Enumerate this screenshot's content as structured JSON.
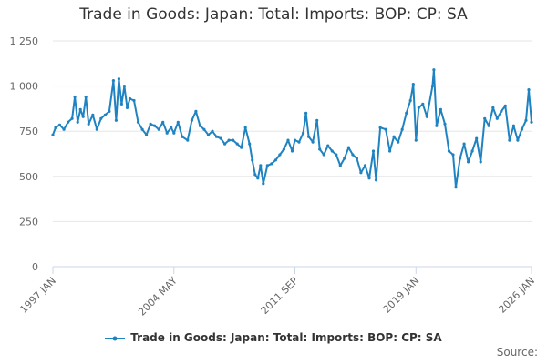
{
  "chart_data": {
    "type": "line",
    "title": "Trade in Goods: Japan: Total: Imports: BOP: CP: SA",
    "xlabel": "",
    "ylabel": "",
    "x_ticks": [
      "1997 JAN",
      "2004 MAY",
      "2011 SEP",
      "2019 JAN",
      "2026 JAN"
    ],
    "y_ticks": [
      "0",
      "250",
      "500",
      "750",
      "1 000",
      "1 250"
    ],
    "ylim": [
      0,
      1250
    ],
    "grid": true,
    "legend_position": "bottom",
    "series": [
      {
        "name": "Trade in Goods: Japan: Total: Imports: BOP: CP: SA",
        "color": "#1f83c1",
        "points": [
          [
            "1997-01",
            730
          ],
          [
            "1997-03",
            770
          ],
          [
            "1997-06",
            785
          ],
          [
            "1997-09",
            760
          ],
          [
            "1997-12",
            800
          ],
          [
            "1998-03",
            820
          ],
          [
            "1998-05",
            940
          ],
          [
            "1998-07",
            800
          ],
          [
            "1998-09",
            870
          ],
          [
            "1998-11",
            830
          ],
          [
            "1999-01",
            940
          ],
          [
            "1999-03",
            790
          ],
          [
            "1999-06",
            840
          ],
          [
            "1999-09",
            760
          ],
          [
            "1999-12",
            820
          ],
          [
            "2000-03",
            840
          ],
          [
            "2000-06",
            860
          ],
          [
            "2000-09",
            1030
          ],
          [
            "2000-11",
            810
          ],
          [
            "2001-01",
            1040
          ],
          [
            "2001-03",
            900
          ],
          [
            "2001-05",
            1000
          ],
          [
            "2001-07",
            880
          ],
          [
            "2001-09",
            930
          ],
          [
            "2001-12",
            920
          ],
          [
            "2002-03",
            800
          ],
          [
            "2002-06",
            760
          ],
          [
            "2002-09",
            730
          ],
          [
            "2002-12",
            790
          ],
          [
            "2003-03",
            780
          ],
          [
            "2003-06",
            760
          ],
          [
            "2003-09",
            800
          ],
          [
            "2003-12",
            740
          ],
          [
            "2004-03",
            770
          ],
          [
            "2004-05",
            740
          ],
          [
            "2004-08",
            800
          ],
          [
            "2004-11",
            720
          ],
          [
            "2005-03",
            700
          ],
          [
            "2005-06",
            810
          ],
          [
            "2005-09",
            860
          ],
          [
            "2005-12",
            780
          ],
          [
            "2006-03",
            760
          ],
          [
            "2006-06",
            730
          ],
          [
            "2006-09",
            750
          ],
          [
            "2006-12",
            720
          ],
          [
            "2007-03",
            710
          ],
          [
            "2007-06",
            680
          ],
          [
            "2007-09",
            700
          ],
          [
            "2007-12",
            700
          ],
          [
            "2008-03",
            680
          ],
          [
            "2008-06",
            660
          ],
          [
            "2008-09",
            770
          ],
          [
            "2008-12",
            680
          ],
          [
            "2009-02",
            590
          ],
          [
            "2009-04",
            510
          ],
          [
            "2009-06",
            490
          ],
          [
            "2009-08",
            560
          ],
          [
            "2009-10",
            460
          ],
          [
            "2010-01",
            560
          ],
          [
            "2010-04",
            570
          ],
          [
            "2010-07",
            590
          ],
          [
            "2010-10",
            620
          ],
          [
            "2011-01",
            650
          ],
          [
            "2011-04",
            700
          ],
          [
            "2011-07",
            640
          ],
          [
            "2011-09",
            700
          ],
          [
            "2011-12",
            690
          ],
          [
            "2012-03",
            740
          ],
          [
            "2012-05",
            850
          ],
          [
            "2012-07",
            720
          ],
          [
            "2012-10",
            690
          ],
          [
            "2013-01",
            810
          ],
          [
            "2013-03",
            650
          ],
          [
            "2013-06",
            620
          ],
          [
            "2013-09",
            670
          ],
          [
            "2013-12",
            640
          ],
          [
            "2014-03",
            620
          ],
          [
            "2014-06",
            560
          ],
          [
            "2014-09",
            600
          ],
          [
            "2014-12",
            660
          ],
          [
            "2015-03",
            620
          ],
          [
            "2015-06",
            600
          ],
          [
            "2015-09",
            520
          ],
          [
            "2015-12",
            560
          ],
          [
            "2016-03",
            490
          ],
          [
            "2016-06",
            640
          ],
          [
            "2016-08",
            480
          ],
          [
            "2016-11",
            770
          ],
          [
            "2017-03",
            760
          ],
          [
            "2017-06",
            640
          ],
          [
            "2017-09",
            720
          ],
          [
            "2017-12",
            690
          ],
          [
            "2018-03",
            760
          ],
          [
            "2018-06",
            850
          ],
          [
            "2018-09",
            920
          ],
          [
            "2018-11",
            1010
          ],
          [
            "2019-01",
            700
          ],
          [
            "2019-03",
            880
          ],
          [
            "2019-06",
            900
          ],
          [
            "2019-09",
            830
          ],
          [
            "2020-01",
            1000
          ],
          [
            "2020-02",
            1090
          ],
          [
            "2020-04",
            780
          ],
          [
            "2020-07",
            870
          ],
          [
            "2020-10",
            790
          ],
          [
            "2021-01",
            640
          ],
          [
            "2021-04",
            620
          ],
          [
            "2021-06",
            440
          ],
          [
            "2021-09",
            600
          ],
          [
            "2021-12",
            680
          ],
          [
            "2022-03",
            580
          ],
          [
            "2022-06",
            640
          ],
          [
            "2022-09",
            710
          ],
          [
            "2022-12",
            580
          ],
          [
            "2023-03",
            820
          ],
          [
            "2023-06",
            780
          ],
          [
            "2023-09",
            880
          ],
          [
            "2023-12",
            820
          ],
          [
            "2024-03",
            860
          ],
          [
            "2024-06",
            890
          ],
          [
            "2024-09",
            700
          ],
          [
            "2024-12",
            780
          ],
          [
            "2025-03",
            700
          ],
          [
            "2025-06",
            760
          ],
          [
            "2025-09",
            810
          ],
          [
            "2025-11",
            980
          ],
          [
            "2026-01",
            800
          ]
        ]
      }
    ]
  },
  "source_label": "Source:"
}
